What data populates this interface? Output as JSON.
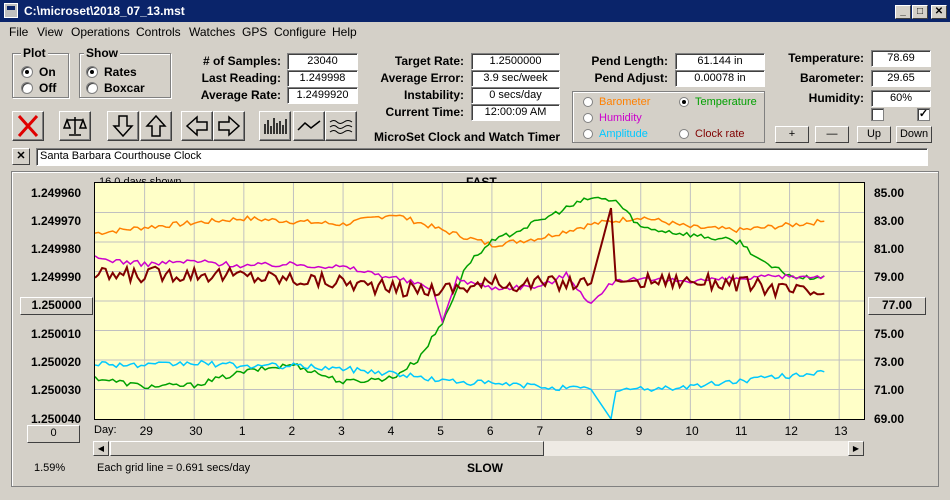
{
  "window": {
    "title": "C:\\microset\\2018_07_13.mst"
  },
  "menu": [
    "File",
    "View",
    "Operations",
    "Controls",
    "Watches",
    "GPS",
    "Configure",
    "Help"
  ],
  "plot_group": {
    "title": "Plot",
    "options": [
      "On",
      "Off"
    ],
    "selected": "On"
  },
  "show_group": {
    "title": "Show",
    "options": [
      "Rates",
      "Boxcar"
    ],
    "selected": "Rates"
  },
  "stats": {
    "samples_label": "# of Samples:",
    "samples": "23040",
    "last_reading_label": "Last Reading:",
    "last_reading": "1.249998",
    "average_rate_label": "Average Rate:",
    "average_rate": "1.2499920",
    "target_rate_label": "Target Rate:",
    "target_rate": "1.2500000",
    "average_error_label": "Average Error:",
    "average_error": "3.9 sec/week",
    "instability_label": "Instability:",
    "instability": "0 secs/day",
    "current_time_label": "Current Time:",
    "current_time": "12:00:09 AM",
    "pend_length_label": "Pend Length:",
    "pend_length": "61.144 in",
    "pend_adjust_label": "Pend Adjust:",
    "pend_adjust": "0.00078 in",
    "temperature_label": "Temperature:",
    "temperature": "78.69",
    "barometer_label": "Barometer:",
    "barometer": "29.65",
    "humidity_label": "Humidity:",
    "humidity": "60%"
  },
  "product_name": "MicroSet Clock and Watch Timer",
  "secondary_selector": {
    "options": [
      {
        "label": "Barometer",
        "color": "#ff8000",
        "selected": false
      },
      {
        "label": "Temperature",
        "color": "#00a000",
        "selected": true
      },
      {
        "label": "Humidity",
        "color": "#cc00cc",
        "selected": false
      },
      {
        "label": "Amplitude",
        "color": "#00c8ff",
        "selected": false
      },
      {
        "label": "Clock rate",
        "color": "#800000",
        "selected": false
      }
    ]
  },
  "checkboxes": [
    {
      "checked": false
    },
    {
      "checked": true
    }
  ],
  "step_buttons": [
    "+",
    "—",
    "Up",
    "Down"
  ],
  "toolbar": {
    "icons": [
      "stop-icon",
      "balance-icon",
      "arrow-down-icon",
      "arrow-up-icon",
      "arrow-left-icon",
      "arrow-right-icon",
      "bar-chart-icon",
      "line-chart-icon",
      "wave-icon"
    ]
  },
  "description": {
    "close_label": "✕",
    "value": "Santa Barbara Courthouse Clock"
  },
  "chart": {
    "days_shown": "16.0 days shown",
    "top_label": "FAST",
    "bottom_label": "SLOW",
    "center_left_button": "1.250000",
    "center_right_button": "77.00",
    "bottom_left_button": "0",
    "day_label": "Day:",
    "grid_note": "Each grid line = 0.691 secs/day",
    "percent": "1.59%"
  },
  "chart_data": {
    "type": "line",
    "left_axis_ticks": [
      "1.249960",
      "1.249970",
      "1.249980",
      "1.249990",
      "1.250000",
      "1.250010",
      "1.250020",
      "1.250030",
      "1.250040"
    ],
    "right_axis_ticks": [
      "85.00",
      "83.00",
      "81.00",
      "79.00",
      "77.00",
      "75.00",
      "73.00",
      "71.00",
      "69.00"
    ],
    "x_ticks": [
      "29",
      "30",
      "1",
      "2",
      "3",
      "4",
      "5",
      "6",
      "7",
      "8",
      "9",
      "10",
      "11",
      "12",
      "13"
    ],
    "xlim": [
      0,
      15.5
    ],
    "ylim_left": [
      1.24996,
      1.25004
    ],
    "ylim_right": [
      69,
      85
    ],
    "grid": true,
    "colors": {
      "background": "#ffffc8",
      "grid": "#c0c0c0"
    },
    "series": [
      {
        "name": "Barometer",
        "color": "#ff8000",
        "axis": "right",
        "x": [
          0,
          1,
          2,
          3,
          4,
          5,
          6,
          7,
          8,
          9,
          10,
          11,
          12,
          13,
          14.7
        ],
        "y": [
          81.6,
          82.0,
          82.3,
          82.6,
          82.4,
          82.2,
          82.9,
          81.8,
          80.8,
          81.3,
          82.2,
          82.7,
          82.0,
          81.8,
          82.4
        ]
      },
      {
        "name": "Temperature",
        "color": "#00a000",
        "axis": "right",
        "x": [
          0,
          1,
          2,
          3,
          4,
          5,
          6,
          6.5,
          7,
          7.5,
          8,
          9,
          9.5,
          10,
          10.5,
          11,
          12,
          13,
          13.5,
          14.2,
          14.7
        ],
        "y": [
          71.8,
          71.2,
          71.3,
          72.2,
          72.7,
          71.5,
          71.8,
          73.0,
          75.5,
          79.5,
          81.0,
          82.5,
          83.3,
          84.0,
          83.8,
          82.0,
          81.5,
          81.0,
          79.5,
          78.5,
          78.7
        ]
      },
      {
        "name": "Humidity",
        "color": "#cc00cc",
        "axis": "right",
        "x": [
          0,
          1,
          2,
          3,
          4,
          5,
          6,
          6.8,
          7,
          7.3,
          8,
          9,
          9.5,
          10,
          10.5,
          11,
          12,
          13,
          13.5,
          14.7
        ],
        "y": [
          79.9,
          79.5,
          79.7,
          79.4,
          79.5,
          79.3,
          78.6,
          77.9,
          75.6,
          78.5,
          77.9,
          78.0,
          78.8,
          76.8,
          78.5,
          78.4,
          78.4,
          78.5,
          78.6,
          78.7
        ]
      },
      {
        "name": "Amplitude",
        "color": "#00c8ff",
        "axis": "right",
        "x": [
          0,
          1,
          2,
          3,
          4,
          5,
          6,
          7,
          8,
          9,
          10,
          10.4,
          10.5,
          11,
          12,
          13,
          14.7
        ],
        "y": [
          72.8,
          72.6,
          72.8,
          72.6,
          72.6,
          72.4,
          72.1,
          71.6,
          71.4,
          71.2,
          71.0,
          69.0,
          71.0,
          71.0,
          71.2,
          71.6,
          72.2
        ]
      },
      {
        "name": "Clock rate",
        "color": "#800000",
        "axis": "right",
        "x": [
          0,
          1,
          2,
          3,
          4,
          5,
          6,
          7,
          7.5,
          8,
          9,
          10,
          10.4,
          10.5,
          10.6,
          11,
          12,
          13,
          14,
          14.7
        ],
        "y": [
          78.7,
          78.8,
          78.9,
          78.7,
          78.5,
          78.3,
          77.8,
          77.8,
          78.0,
          78.2,
          78.2,
          78.2,
          83.3,
          78.4,
          78.3,
          78.4,
          78.4,
          78.2,
          77.7,
          77.5
        ]
      }
    ]
  }
}
